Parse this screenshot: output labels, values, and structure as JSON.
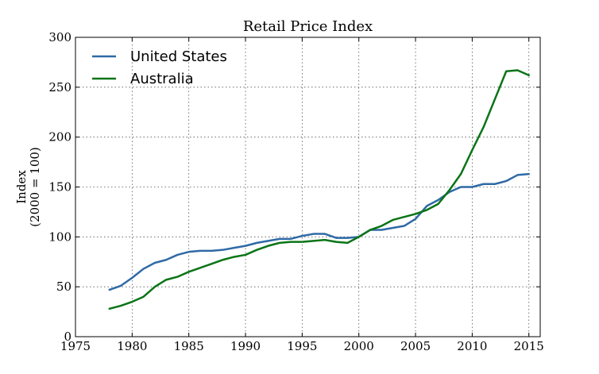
{
  "chart_data": {
    "type": "line",
    "title": "Retail Price Index",
    "ylabel": "Index",
    "ylabel_sub": "(2000 = 100)",
    "xlim": [
      1975,
      2016
    ],
    "ylim": [
      0,
      300
    ],
    "xticks": [
      1975,
      1980,
      1985,
      1990,
      1995,
      2000,
      2005,
      2010,
      2015
    ],
    "yticks": [
      0,
      50,
      100,
      150,
      200,
      250,
      300
    ],
    "grid": true,
    "legend_position": "top-left",
    "x": [
      1978,
      1979,
      1980,
      1981,
      1982,
      1983,
      1984,
      1985,
      1986,
      1987,
      1988,
      1989,
      1990,
      1991,
      1992,
      1993,
      1994,
      1995,
      1996,
      1997,
      1998,
      1999,
      2000,
      2001,
      2002,
      2003,
      2004,
      2005,
      2006,
      2007,
      2008,
      2009,
      2010,
      2011,
      2012,
      2013,
      2014,
      2015
    ],
    "series": [
      {
        "name": "United States",
        "color": "#2f6aa6",
        "values": [
          47,
          51,
          59,
          68,
          74,
          77,
          82,
          85,
          86,
          86,
          87,
          89,
          91,
          94,
          96,
          98,
          98,
          101,
          103,
          103,
          99,
          99,
          100,
          107,
          107,
          109,
          111,
          118,
          131,
          137,
          145,
          150,
          150,
          153,
          153,
          156,
          162,
          163
        ]
      },
      {
        "name": "Australia",
        "color": "#0a7417",
        "values": [
          28,
          31,
          35,
          40,
          50,
          57,
          60,
          65,
          69,
          73,
          77,
          80,
          82,
          87,
          91,
          94,
          95,
          95,
          96,
          97,
          95,
          94,
          100,
          107,
          111,
          117,
          120,
          123,
          127,
          133,
          147,
          163,
          187,
          210,
          238,
          266,
          267,
          262
        ]
      }
    ]
  }
}
